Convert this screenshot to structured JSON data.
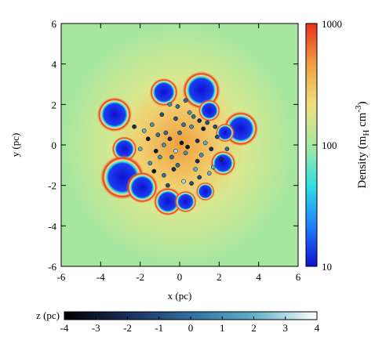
{
  "chart_data": {
    "type": "scatter",
    "xlabel": "x (pc)",
    "ylabel": "y (pc)",
    "xlim": [
      -6,
      6
    ],
    "ylim": [
      -6,
      6
    ],
    "xticks": [
      -6,
      -4,
      -2,
      0,
      2,
      4,
      6
    ],
    "yticks": [
      -6,
      -4,
      -2,
      0,
      2,
      4,
      6
    ],
    "x": [
      -0.5,
      0.3,
      1.2,
      -1.1,
      0.8,
      -0.2,
      1.6,
      -1.5,
      0.1,
      -0.8,
      0.5,
      1.9,
      -1.8,
      0.9,
      -0.4,
      0.2,
      1.4,
      -1.2,
      0.6,
      -0.1,
      2.1,
      -2.0,
      1.0,
      -0.7,
      0.4,
      -1.4,
      1.7,
      -0.3,
      0.7,
      -0.9,
      1.1,
      -1.6,
      0.0,
      1.3,
      -0.6,
      0.9,
      -1.0,
      0.3,
      1.8,
      -0.2,
      -2.3,
      2.4,
      -0.5,
      0.6,
      1.5,
      -1.3,
      0.2,
      -0.8,
      1.0,
      -0.1
    ],
    "y": [
      0.3,
      -0.4,
      0.8,
      0.5,
      -1.2,
      1.3,
      -0.2,
      -0.9,
      0.1,
      -1.5,
      1.6,
      0.4,
      0.7,
      0.2,
      -0.6,
      -1.8,
      1.1,
      -0.3,
      0.9,
      1.9,
      -0.7,
      -0.2,
      -1.6,
      0.6,
      -0.1,
      1.0,
      -1.1,
      -1.2,
      1.4,
      1.5,
      -0.5,
      0.3,
      0.6,
      0.1,
      -2.0,
      -0.8,
      -0.6,
      2.2,
      0.9,
      -0.3,
      0.9,
      -0.2,
      2.0,
      -1.9,
      -1.4,
      -1.3,
      1.0,
      0.0,
      1.2,
      -1.0
    ],
    "z": [
      -2,
      1,
      -3,
      0,
      2,
      -1,
      -2,
      1,
      -3,
      0,
      1,
      -1,
      2,
      -2,
      0,
      3,
      -1,
      -3,
      1,
      0,
      -2,
      2,
      -1,
      0,
      -3,
      1,
      2,
      -2,
      0,
      -1,
      1,
      -3,
      0,
      2,
      -1,
      -2,
      1,
      0,
      -1,
      3,
      -2,
      0,
      1,
      -1,
      2,
      -3,
      0,
      1,
      -2,
      0
    ],
    "bubbles": {
      "x": [
        1.1,
        -0.8,
        -3.3,
        -2.8,
        -2.9,
        -1.9,
        -0.6,
        0.3,
        1.5,
        2.2,
        3.1,
        2.3,
        1.3
      ],
      "y": [
        2.7,
        2.6,
        1.5,
        -0.2,
        -1.6,
        -2.1,
        -2.8,
        -2.8,
        1.7,
        -0.9,
        0.8,
        0.6,
        -2.3
      ],
      "r": [
        0.6,
        0.45,
        0.55,
        0.4,
        0.7,
        0.5,
        0.45,
        0.35,
        0.35,
        0.4,
        0.55,
        0.3,
        0.3
      ]
    },
    "colorbar": {
      "label": [
        "Density (m",
        "H",
        " cm",
        "-3",
        ")"
      ],
      "lim": [
        10,
        1000
      ],
      "ticks": [
        10,
        100,
        1000
      ],
      "log": true,
      "colors": [
        "#1010d0",
        "#2080ff",
        "#30e0e0",
        "#a8e8a0",
        "#f0e080",
        "#f0a040",
        "#e83020"
      ]
    },
    "zbar": {
      "label": "z (pc)",
      "lim": [
        -4,
        4
      ],
      "ticks": [
        -4,
        -3,
        -2,
        -1,
        0,
        1,
        2,
        3,
        4
      ],
      "colors": [
        "#000000",
        "#1a2d5a",
        "#2f6f9f",
        "#5fb0c8",
        "#ffffff"
      ]
    }
  }
}
